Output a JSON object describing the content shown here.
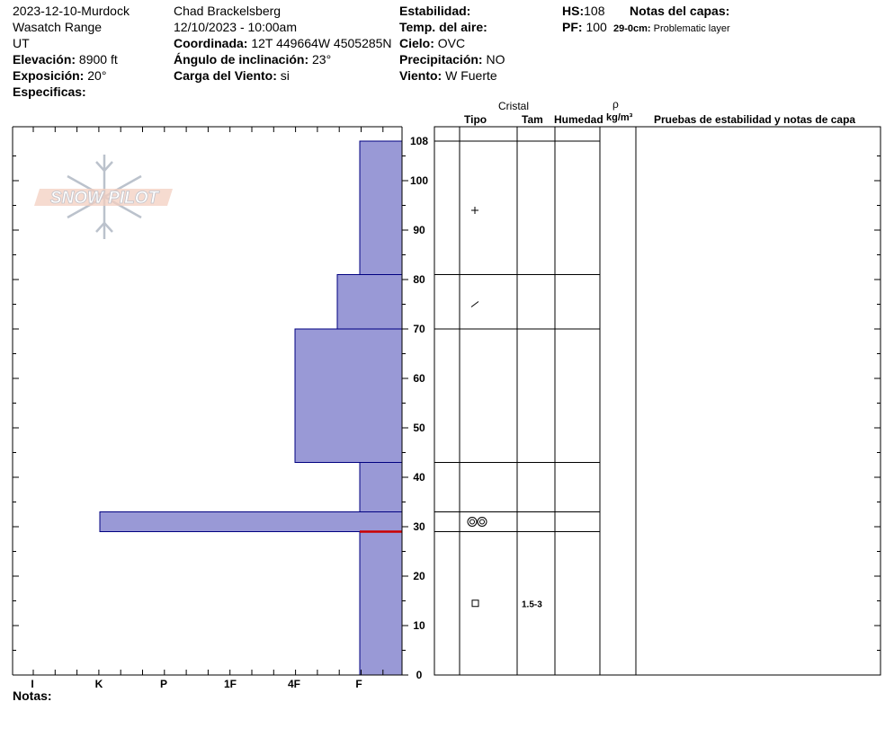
{
  "header": {
    "col1": [
      "2023-12-10-Murdock",
      "Wasatch Range",
      "UT"
    ],
    "elevation_label": "Elevación:",
    "elevation_value": "8900 ft",
    "exposure_label": "Exposición:",
    "exposure_value": "20°",
    "specifics_label": "Especificas:",
    "observer": "Chad Brackelsberg",
    "datetime": "12/10/2023 - 10:00am",
    "coord_label": "Coordinada:",
    "coord_value": "12T 449664W 4505285N",
    "slope_label": "Ángulo de inclinación:",
    "slope_value": "23°",
    "wind_load_label": "Carga del Viento:",
    "wind_load_value": "si",
    "stability_label": "Estabilidad:",
    "air_temp_label": "Temp. del aire:",
    "sky_label": "Cielo:",
    "sky_value": "OVC",
    "precip_label": "Precipitación:",
    "precip_value": "NO",
    "wind_label": "Viento:",
    "wind_value": "W Fuerte",
    "hs_label": "HS:",
    "hs_value": "108",
    "pf_label": "PF:",
    "pf_value": "100",
    "layer_notes_label": "Notas del capas:",
    "layer_note_depth": "29-0cm:",
    "layer_note_text": "Problematic layer"
  },
  "logo": {
    "text": "SNOW PILOT"
  },
  "columns": {
    "crystal": "Cristal",
    "type": "Tipo",
    "size": "Tam",
    "humidity": "Humedad",
    "rho": "ρ",
    "density_unit": "kg/m³",
    "tests": "Pruebas de estabilidad y notas de capa"
  },
  "notes_label": "Notas:",
  "colors": {
    "layer_fill": "#9999d6",
    "layer_edge": "#000080",
    "weak_layer": "#cc0000"
  },
  "chart_data": {
    "type": "snow-profile-hardness",
    "y_unit": "cm",
    "ylim": [
      0,
      108
    ],
    "y_ticks": [
      0,
      10,
      20,
      30,
      40,
      50,
      60,
      70,
      80,
      90,
      100,
      108
    ],
    "hardness_scale": [
      "I",
      "K",
      "P",
      "1F",
      "4F",
      "F"
    ],
    "layers": [
      {
        "top": 108,
        "bottom": 81,
        "hardness": "F"
      },
      {
        "top": 81,
        "bottom": 70,
        "hardness": "4F+"
      },
      {
        "top": 70,
        "bottom": 43,
        "hardness": "4F"
      },
      {
        "top": 43,
        "bottom": 33,
        "hardness": "F"
      },
      {
        "top": 33,
        "bottom": 29,
        "hardness": "K"
      },
      {
        "top": 29,
        "bottom": 0,
        "hardness": "F"
      }
    ],
    "weak_layer_height": 29,
    "crystal_table_boundaries": [
      108,
      81,
      70,
      43,
      33,
      29
    ],
    "crystals": [
      {
        "height": 94,
        "type": "precipitation-particles",
        "symbol": "+"
      },
      {
        "height": 75,
        "type": "decomposing-fragments",
        "symbol": "/"
      },
      {
        "height": 31,
        "type": "melt-forms",
        "symbol": "◎◎"
      },
      {
        "height": 14.5,
        "type": "faceted-crystals",
        "symbol": "□",
        "size": "1.5-3"
      }
    ]
  }
}
